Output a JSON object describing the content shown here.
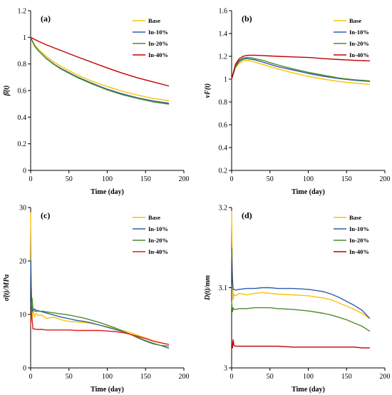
{
  "chart_data": [
    {
      "type": "line",
      "panel_label": "(a)",
      "xlabel": "Time (day)",
      "ylabel": "β̄(t)",
      "xlim": [
        0,
        200
      ],
      "ylim": [
        0,
        1.2
      ],
      "xticks": [
        "0",
        "50",
        "100",
        "150",
        "200"
      ],
      "yticks": [
        "0",
        "0.2",
        "0.4",
        "0.6",
        "0.8",
        "1",
        "1.2"
      ],
      "grid": false,
      "legend": "top-right",
      "series": [
        {
          "name": "Base",
          "color": "#FFC000",
          "x": [
            0,
            5,
            10,
            20,
            30,
            40,
            60,
            80,
            100,
            120,
            140,
            160,
            180
          ],
          "y": [
            1.0,
            0.945,
            0.91,
            0.86,
            0.815,
            0.78,
            0.72,
            0.67,
            0.63,
            0.595,
            0.565,
            0.54,
            0.525
          ]
        },
        {
          "name": "In-10%",
          "color": "#2E5EA8",
          "x": [
            0,
            5,
            10,
            20,
            30,
            40,
            60,
            80,
            100,
            120,
            140,
            160,
            180
          ],
          "y": [
            1.0,
            0.935,
            0.9,
            0.845,
            0.8,
            0.765,
            0.705,
            0.655,
            0.61,
            0.575,
            0.545,
            0.522,
            0.505
          ]
        },
        {
          "name": "In-20%",
          "color": "#4E8A30",
          "x": [
            0,
            5,
            10,
            20,
            30,
            40,
            60,
            80,
            100,
            120,
            140,
            160,
            180
          ],
          "y": [
            1.0,
            0.935,
            0.9,
            0.842,
            0.797,
            0.76,
            0.7,
            0.65,
            0.605,
            0.568,
            0.54,
            0.515,
            0.498
          ]
        },
        {
          "name": "In-40%",
          "color": "#C00000",
          "x": [
            0,
            5,
            10,
            20,
            30,
            40,
            60,
            80,
            100,
            120,
            140,
            160,
            180
          ],
          "y": [
            1.0,
            0.985,
            0.97,
            0.945,
            0.922,
            0.9,
            0.855,
            0.812,
            0.77,
            0.73,
            0.695,
            0.665,
            0.635
          ]
        }
      ]
    },
    {
      "type": "line",
      "panel_label": "(b)",
      "xlabel": "Time (day)",
      "ylabel": "vF(t)",
      "xlim": [
        0,
        200
      ],
      "ylim": [
        0.2,
        1.6
      ],
      "xticks": [
        "0",
        "50",
        "100",
        "150",
        "200"
      ],
      "yticks": [
        "0.2",
        "0.4",
        "0.6",
        "0.8",
        "1",
        "1.2",
        "1.4",
        "1.6"
      ],
      "grid": false,
      "legend": "top-right",
      "series": [
        {
          "name": "Base",
          "color": "#FFC000",
          "x": [
            0,
            5,
            10,
            15,
            20,
            25,
            30,
            40,
            60,
            80,
            100,
            120,
            140,
            160,
            180
          ],
          "y": [
            1.0,
            1.1,
            1.14,
            1.16,
            1.165,
            1.16,
            1.15,
            1.13,
            1.09,
            1.055,
            1.025,
            1.0,
            0.98,
            0.965,
            0.955
          ]
        },
        {
          "name": "In-10%",
          "color": "#2E5EA8",
          "x": [
            0,
            5,
            10,
            15,
            20,
            25,
            30,
            40,
            60,
            80,
            100,
            120,
            140,
            160,
            180
          ],
          "y": [
            1.0,
            1.11,
            1.155,
            1.175,
            1.18,
            1.175,
            1.17,
            1.15,
            1.11,
            1.08,
            1.05,
            1.025,
            1.005,
            0.99,
            0.98
          ]
        },
        {
          "name": "In-20%",
          "color": "#4E8A30",
          "x": [
            0,
            5,
            10,
            15,
            20,
            25,
            30,
            40,
            60,
            80,
            100,
            120,
            140,
            160,
            180
          ],
          "y": [
            1.0,
            1.12,
            1.165,
            1.185,
            1.19,
            1.188,
            1.18,
            1.165,
            1.125,
            1.09,
            1.06,
            1.035,
            1.01,
            0.995,
            0.985
          ]
        },
        {
          "name": "In-40%",
          "color": "#C00000",
          "x": [
            0,
            5,
            10,
            15,
            20,
            25,
            30,
            40,
            60,
            80,
            100,
            120,
            140,
            160,
            180
          ],
          "y": [
            1.0,
            1.13,
            1.18,
            1.2,
            1.208,
            1.21,
            1.21,
            1.207,
            1.2,
            1.195,
            1.19,
            1.18,
            1.172,
            1.165,
            1.16
          ]
        }
      ]
    },
    {
      "type": "line",
      "panel_label": "(c)",
      "xlabel": "Time (day)",
      "ylabel": "σ̄(t)/MPa",
      "xlim": [
        0,
        200
      ],
      "ylim": [
        0,
        30
      ],
      "xticks": [
        "0",
        "50",
        "100",
        "150",
        "200"
      ],
      "yticks": [
        "0",
        "10",
        "20",
        "30"
      ],
      "grid": false,
      "legend": "top-right",
      "series": [
        {
          "name": "Base",
          "color": "#FFC000",
          "x": [
            0,
            1,
            2,
            3,
            5,
            7,
            10,
            15,
            20,
            30,
            40,
            50,
            60,
            70,
            80,
            90,
            100,
            110,
            120,
            130,
            140,
            150,
            160,
            170,
            180
          ],
          "y": [
            29,
            15,
            9.5,
            10.8,
            9.6,
            10.2,
            9.8,
            9.9,
            9.3,
            9.5,
            9.0,
            8.7,
            8.6,
            8.5,
            8.3,
            8.0,
            7.7,
            7.4,
            7.0,
            6.6,
            6.1,
            5.6,
            5.1,
            4.7,
            4.4
          ]
        },
        {
          "name": "In-10%",
          "color": "#2E5EA8",
          "x": [
            0,
            1,
            2,
            3,
            5,
            7,
            10,
            15,
            20,
            30,
            40,
            50,
            60,
            70,
            80,
            90,
            100,
            110,
            120,
            130,
            140,
            150,
            160,
            170,
            180
          ],
          "y": [
            20,
            13,
            10.5,
            11.0,
            11.0,
            10.8,
            10.7,
            10.5,
            10.3,
            9.9,
            9.5,
            9.2,
            8.9,
            8.7,
            8.4,
            8.0,
            7.6,
            7.2,
            6.8,
            6.3,
            5.7,
            5.1,
            4.6,
            4.2,
            3.7
          ]
        },
        {
          "name": "In-20%",
          "color": "#4E8A30",
          "x": [
            0,
            1,
            2,
            3,
            5,
            7,
            10,
            15,
            20,
            30,
            40,
            50,
            60,
            70,
            80,
            90,
            100,
            110,
            120,
            130,
            140,
            150,
            160,
            170,
            180
          ],
          "y": [
            9,
            11,
            13.0,
            11.0,
            10.6,
            10.6,
            10.6,
            10.6,
            10.5,
            10.3,
            10.1,
            9.9,
            9.6,
            9.3,
            8.9,
            8.5,
            8.0,
            7.5,
            6.9,
            6.3,
            5.6,
            5.0,
            4.5,
            4.2,
            4.1
          ]
        },
        {
          "name": "In-40%",
          "color": "#E01B1B",
          "x": [
            0,
            1,
            2,
            3,
            5,
            7,
            10,
            15,
            20,
            30,
            40,
            50,
            60,
            70,
            80,
            90,
            100,
            110,
            120,
            130,
            140,
            150,
            160,
            170,
            180
          ],
          "y": [
            8,
            10.5,
            9.0,
            7.3,
            7.3,
            7.2,
            7.2,
            7.2,
            7.1,
            7.1,
            7.1,
            7.1,
            7.0,
            7.0,
            7.0,
            7.0,
            6.9,
            6.8,
            6.6,
            6.3,
            5.9,
            5.5,
            5.0,
            4.7,
            4.4
          ]
        }
      ]
    },
    {
      "type": "line",
      "panel_label": "(d)",
      "xlabel": "Time (day)",
      "ylabel": "D(t)/mm",
      "xlim": [
        0,
        200
      ],
      "ylim": [
        3,
        3.2
      ],
      "xticks": [
        "0",
        "50",
        "100",
        "150",
        "200"
      ],
      "yticks": [
        "3",
        "3.1",
        "3.2"
      ],
      "grid": false,
      "legend": "top-right",
      "series": [
        {
          "name": "Base",
          "color": "#FFC000",
          "x": [
            0,
            1,
            2,
            3,
            5,
            10,
            20,
            30,
            40,
            50,
            60,
            80,
            100,
            120,
            130,
            140,
            150,
            160,
            170,
            180
          ],
          "y": [
            3.195,
            3.12,
            3.085,
            3.092,
            3.09,
            3.093,
            3.091,
            3.093,
            3.094,
            3.093,
            3.092,
            3.091,
            3.09,
            3.087,
            3.085,
            3.081,
            3.077,
            3.073,
            3.068,
            3.062
          ]
        },
        {
          "name": "In-10%",
          "color": "#2E5EA8",
          "x": [
            0,
            1,
            2,
            3,
            5,
            10,
            20,
            30,
            40,
            50,
            60,
            80,
            100,
            120,
            130,
            140,
            150,
            160,
            170,
            180
          ],
          "y": [
            3.15,
            3.11,
            3.098,
            3.098,
            3.097,
            3.098,
            3.099,
            3.099,
            3.1,
            3.1,
            3.099,
            3.099,
            3.098,
            3.095,
            3.092,
            3.088,
            3.083,
            3.078,
            3.072,
            3.062
          ]
        },
        {
          "name": "In-20%",
          "color": "#4E8A30",
          "x": [
            0,
            1,
            2,
            3,
            5,
            10,
            20,
            30,
            40,
            50,
            60,
            80,
            100,
            120,
            130,
            140,
            150,
            160,
            170,
            180
          ],
          "y": [
            3.083,
            3.07,
            3.075,
            3.073,
            3.073,
            3.074,
            3.074,
            3.075,
            3.075,
            3.075,
            3.074,
            3.073,
            3.071,
            3.068,
            3.066,
            3.063,
            3.06,
            3.056,
            3.052,
            3.046
          ]
        },
        {
          "name": "In-40%",
          "color": "#C00000",
          "x": [
            0,
            1,
            2,
            3,
            5,
            10,
            20,
            30,
            40,
            50,
            60,
            80,
            100,
            120,
            130,
            140,
            150,
            160,
            170,
            180
          ],
          "y": [
            3.032,
            3.025,
            3.035,
            3.028,
            3.027,
            3.027,
            3.027,
            3.027,
            3.027,
            3.027,
            3.027,
            3.026,
            3.026,
            3.026,
            3.026,
            3.026,
            3.026,
            3.026,
            3.025,
            3.025
          ]
        }
      ]
    }
  ]
}
